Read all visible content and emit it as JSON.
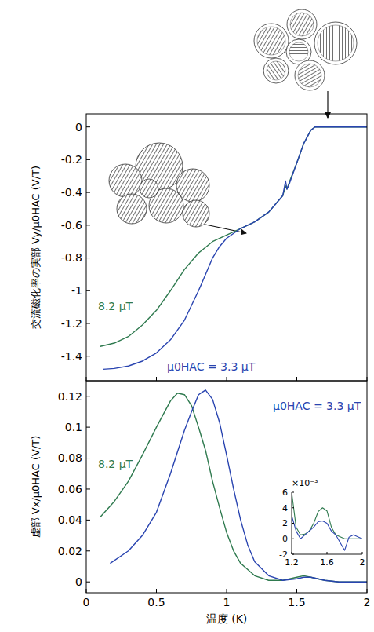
{
  "chart_data": [
    {
      "type": "line",
      "y_label": "交流磁化率の実部 Vy/μ0HAC (V/T)",
      "xlim": [
        0,
        2
      ],
      "xticks": [
        0,
        0.5,
        1,
        1.5,
        2
      ],
      "ylim": [
        -1.55,
        0.08
      ],
      "yticks": [
        0,
        -0.2,
        -0.4,
        -0.6,
        -0.8,
        -1,
        -1.2,
        -1.4
      ],
      "tick_labels": "y",
      "legend": "inline",
      "series": [
        {
          "name": "8.2 μT",
          "color": "#2f7a4f",
          "x": [
            0.1,
            0.2,
            0.3,
            0.4,
            0.5,
            0.6,
            0.7,
            0.8,
            0.9,
            1.0,
            1.1,
            1.2,
            1.3,
            1.35,
            1.4,
            1.42,
            1.43,
            1.45,
            1.5,
            1.55,
            1.6,
            1.63,
            1.7,
            2.0
          ],
          "values": [
            -1.34,
            -1.32,
            -1.28,
            -1.21,
            -1.12,
            -1.0,
            -0.87,
            -0.77,
            -0.7,
            -0.66,
            -0.62,
            -0.58,
            -0.52,
            -0.47,
            -0.42,
            -0.36,
            -0.38,
            -0.33,
            -0.22,
            -0.1,
            -0.02,
            0,
            0,
            0
          ]
        },
        {
          "name": "μ0HAC = 3.3 μT",
          "color": "#2944b0",
          "x": [
            0.12,
            0.2,
            0.3,
            0.4,
            0.5,
            0.6,
            0.7,
            0.8,
            0.85,
            0.9,
            0.95,
            1.0,
            1.05,
            1.1,
            1.2,
            1.3,
            1.35,
            1.4,
            1.42,
            1.43,
            1.45,
            1.5,
            1.55,
            1.6,
            1.63,
            1.7,
            2.0
          ],
          "values": [
            -1.48,
            -1.475,
            -1.46,
            -1.43,
            -1.38,
            -1.3,
            -1.18,
            -1.0,
            -0.9,
            -0.8,
            -0.73,
            -0.68,
            -0.65,
            -0.62,
            -0.58,
            -0.52,
            -0.47,
            -0.42,
            -0.33,
            -0.38,
            -0.34,
            -0.22,
            -0.1,
            -0.02,
            0,
            0,
            0
          ]
        }
      ]
    },
    {
      "type": "line",
      "x_label": "温度 (K)",
      "y_label": "虚部 Vx/μ0HAC (V/T)",
      "xlim": [
        0,
        2
      ],
      "xticks": [
        0,
        0.5,
        1,
        1.5,
        2
      ],
      "ylim": [
        -0.007,
        0.13
      ],
      "yticks": [
        0,
        0.02,
        0.04,
        0.06,
        0.08,
        0.1,
        0.12
      ],
      "tick_labels": true,
      "legend": "inline",
      "series": [
        {
          "name": "8.2 μT",
          "color": "#2f7a4f",
          "x": [
            0.1,
            0.2,
            0.3,
            0.4,
            0.5,
            0.6,
            0.65,
            0.7,
            0.75,
            0.8,
            0.85,
            0.9,
            0.95,
            1.0,
            1.05,
            1.1,
            1.2,
            1.3,
            1.4,
            1.5,
            1.55,
            1.6,
            1.7,
            1.8,
            2.0
          ],
          "values": [
            0.042,
            0.052,
            0.065,
            0.082,
            0.1,
            0.117,
            0.122,
            0.121,
            0.114,
            0.1,
            0.085,
            0.065,
            0.048,
            0.032,
            0.02,
            0.012,
            0.004,
            0.001,
            0.001,
            0.003,
            0.004,
            0.003,
            0.001,
            0,
            0
          ]
        },
        {
          "name": "μ0HAC = 3.3 μT",
          "color": "#2944b0",
          "x": [
            0.17,
            0.3,
            0.4,
            0.5,
            0.6,
            0.7,
            0.75,
            0.8,
            0.85,
            0.9,
            0.95,
            1.0,
            1.05,
            1.1,
            1.15,
            1.2,
            1.3,
            1.4,
            1.5,
            1.55,
            1.6,
            1.7,
            1.8,
            2.0
          ],
          "values": [
            0.012,
            0.02,
            0.03,
            0.045,
            0.07,
            0.098,
            0.11,
            0.121,
            0.124,
            0.118,
            0.103,
            0.082,
            0.06,
            0.04,
            0.024,
            0.013,
            0.004,
            0.001,
            0.002,
            0.003,
            0.003,
            0.001,
            0,
            0
          ]
        }
      ]
    },
    {
      "type": "line",
      "annotations": [
        "×10⁻³"
      ],
      "xlim": [
        1.2,
        2
      ],
      "xticks": [
        1.2,
        1.6,
        2
      ],
      "ylim": [
        -2,
        6
      ],
      "yticks": [
        -2,
        0,
        2,
        4,
        6
      ],
      "tick_labels": true,
      "series": [
        {
          "color": "#2f7a4f",
          "x": [
            1.2,
            1.25,
            1.3,
            1.35,
            1.4,
            1.45,
            1.5,
            1.55,
            1.6,
            1.65,
            1.7,
            1.8,
            1.9,
            2.0
          ],
          "values": [
            6,
            1.5,
            0.5,
            0.6,
            1,
            2,
            3.5,
            4,
            3.6,
            1.5,
            0.5,
            0,
            0,
            0
          ]
        },
        {
          "color": "#2944b0",
          "x": [
            1.2,
            1.25,
            1.3,
            1.35,
            1.4,
            1.45,
            1.5,
            1.55,
            1.6,
            1.65,
            1.7,
            1.75,
            1.8,
            1.85,
            1.9,
            2.0
          ],
          "values": [
            3,
            1,
            0,
            0.5,
            1,
            1.5,
            2.2,
            2.3,
            2,
            1,
            0.5,
            -0.5,
            -1.5,
            0.2,
            0.5,
            0
          ]
        }
      ]
    }
  ]
}
